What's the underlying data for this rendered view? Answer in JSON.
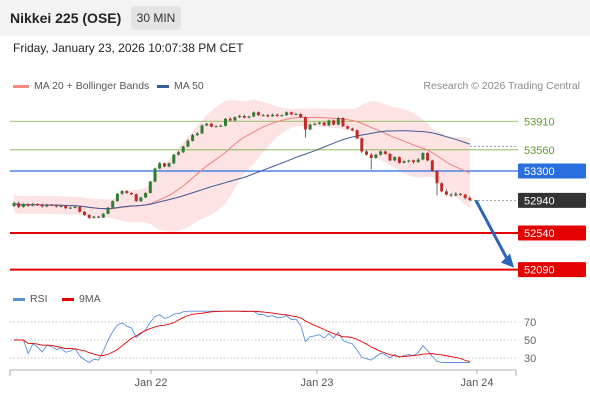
{
  "header": {
    "title": "Nikkei 225 (OSE)",
    "interval": "30 MIN",
    "datetime": "Friday, January 23, 2026 10:07:38 PM CET"
  },
  "legend": {
    "bollinger": "MA 20 + Bollinger Bands",
    "bollinger_color": "#f28b82",
    "ma50": "MA 50",
    "ma50_color": "#3b5998",
    "credit": "Research © 2026 Trading Central"
  },
  "levels": [
    {
      "value": "53910",
      "color": "#7cb342",
      "kind": "resistance"
    },
    {
      "value": "53560",
      "color": "#7cb342",
      "kind": "resistance"
    },
    {
      "value": "53300",
      "color": "#2a6fe0",
      "kind": "pivot"
    },
    {
      "value": "52940",
      "color": "#333333",
      "kind": "last"
    },
    {
      "value": "52540",
      "color": "#e50000",
      "kind": "support"
    },
    {
      "value": "52090",
      "color": "#e50000",
      "kind": "support"
    }
  ],
  "rsi_legend": {
    "rsi": "RSI",
    "rsi_color": "#5b8fd6",
    "ma": "9MA",
    "ma_color": "#e50000"
  },
  "rsi_axis": [
    "70",
    "50",
    "30"
  ],
  "x_axis": [
    "Jan 22",
    "Jan 23",
    "Jan 24"
  ],
  "chart_data": {
    "type": "candlestick",
    "y_levels": [
      53910,
      53560,
      53300,
      52940,
      52540,
      52090
    ],
    "last_price": 52940,
    "forecast_target": 52090,
    "rsi_range": [
      30,
      70
    ],
    "candles": [
      [
        52870,
        52905,
        52925,
        52860
      ],
      [
        52905,
        52860,
        52925,
        52845
      ],
      [
        52860,
        52895,
        52905,
        52850
      ],
      [
        52895,
        52875,
        52905,
        52860
      ],
      [
        52875,
        52895,
        52910,
        52865
      ],
      [
        52895,
        52885,
        52905,
        52870
      ],
      [
        52885,
        52865,
        52900,
        52850
      ],
      [
        52865,
        52885,
        52900,
        52855
      ],
      [
        52885,
        52880,
        52895,
        52870
      ],
      [
        52880,
        52865,
        52890,
        52850
      ],
      [
        52865,
        52870,
        52880,
        52855
      ],
      [
        52870,
        52845,
        52875,
        52830
      ],
      [
        52845,
        52850,
        52860,
        52835
      ],
      [
        52850,
        52860,
        52870,
        52840
      ],
      [
        52860,
        52800,
        52865,
        52790
      ],
      [
        52800,
        52760,
        52810,
        52750
      ],
      [
        52760,
        52725,
        52770,
        52710
      ],
      [
        52725,
        52740,
        52750,
        52715
      ],
      [
        52740,
        52730,
        52750,
        52720
      ],
      [
        52730,
        52775,
        52785,
        52725
      ],
      [
        52775,
        52850,
        52860,
        52770
      ],
      [
        52850,
        52930,
        52940,
        52845
      ],
      [
        52930,
        53020,
        53030,
        52925
      ],
      [
        53020,
        53055,
        53065,
        53010
      ],
      [
        53055,
        53030,
        53065,
        53020
      ],
      [
        53030,
        53015,
        53040,
        53005
      ],
      [
        53015,
        52930,
        53025,
        52920
      ],
      [
        52930,
        52975,
        52985,
        52920
      ],
      [
        52975,
        53030,
        53040,
        52970
      ],
      [
        53030,
        53170,
        53180,
        53025
      ],
      [
        53170,
        53330,
        53340,
        53160
      ],
      [
        53330,
        53395,
        53410,
        53320
      ],
      [
        53395,
        53355,
        53405,
        53345
      ],
      [
        53355,
        53395,
        53405,
        53345
      ],
      [
        53395,
        53500,
        53510,
        53385
      ],
      [
        53500,
        53530,
        53545,
        53490
      ],
      [
        53530,
        53600,
        53610,
        53520
      ],
      [
        53600,
        53670,
        53690,
        53590
      ],
      [
        53670,
        53740,
        53755,
        53660
      ],
      [
        53740,
        53760,
        53780,
        53730
      ],
      [
        53760,
        53860,
        53870,
        53755
      ],
      [
        53860,
        53880,
        53890,
        53850
      ],
      [
        53880,
        53845,
        53890,
        53835
      ],
      [
        53845,
        53850,
        53860,
        53835
      ],
      [
        53850,
        53855,
        53870,
        53840
      ],
      [
        53855,
        53940,
        53950,
        53845
      ],
      [
        53940,
        53920,
        53960,
        53910
      ],
      [
        53920,
        53960,
        53970,
        53910
      ],
      [
        53960,
        53975,
        53990,
        53950
      ],
      [
        53975,
        53955,
        53990,
        53945
      ],
      [
        53955,
        53970,
        53980,
        53945
      ],
      [
        53970,
        54020,
        54030,
        53960
      ],
      [
        54020,
        53985,
        54030,
        53975
      ],
      [
        53985,
        53985,
        54000,
        53970
      ],
      [
        53985,
        53970,
        54000,
        53960
      ],
      [
        53970,
        53990,
        54005,
        53965
      ],
      [
        53990,
        53975,
        54005,
        53965
      ],
      [
        53975,
        53985,
        53995,
        53965
      ],
      [
        53985,
        54020,
        54030,
        53975
      ],
      [
        54020,
        53995,
        54030,
        53985
      ],
      [
        53995,
        54000,
        54015,
        53985
      ],
      [
        54000,
        53960,
        54010,
        53950
      ],
      [
        53960,
        53810,
        53970,
        53710
      ],
      [
        53810,
        53870,
        53880,
        53800
      ],
      [
        53870,
        53880,
        53895,
        53860
      ],
      [
        53880,
        53895,
        53905,
        53870
      ],
      [
        53895,
        53860,
        53905,
        53850
      ],
      [
        53860,
        53920,
        53930,
        53850
      ],
      [
        53920,
        53870,
        53930,
        53860
      ],
      [
        53870,
        53950,
        53960,
        53860
      ],
      [
        53950,
        53850,
        53960,
        53840
      ],
      [
        53850,
        53820,
        53860,
        53810
      ],
      [
        53820,
        53800,
        53830,
        53790
      ],
      [
        53800,
        53700,
        53810,
        53690
      ],
      [
        53700,
        53540,
        53710,
        53520
      ],
      [
        53540,
        53500,
        53560,
        53490
      ],
      [
        53500,
        53460,
        53520,
        53320
      ],
      [
        53460,
        53500,
        53510,
        53450
      ],
      [
        53500,
        53540,
        53550,
        53490
      ],
      [
        53540,
        53510,
        53550,
        53500
      ],
      [
        53510,
        53430,
        53520,
        53420
      ],
      [
        53430,
        53470,
        53480,
        53420
      ],
      [
        53470,
        53400,
        53480,
        53390
      ],
      [
        53400,
        53420,
        53430,
        53390
      ],
      [
        53420,
        53430,
        53440,
        53400
      ],
      [
        53430,
        53410,
        53440,
        53390
      ],
      [
        53410,
        53440,
        53460,
        53400
      ],
      [
        53440,
        53520,
        53530,
        53430
      ],
      [
        53520,
        53430,
        53530,
        53420
      ],
      [
        53430,
        53300,
        53440,
        53290
      ],
      [
        53300,
        53150,
        53310,
        53000
      ],
      [
        53150,
        53050,
        53160,
        53040
      ],
      [
        53050,
        53010,
        53080,
        53000
      ],
      [
        53010,
        53000,
        53030,
        52980
      ],
      [
        53000,
        53020,
        53040,
        52990
      ],
      [
        53020,
        53010,
        53030,
        52995
      ],
      [
        53010,
        52970,
        53020,
        52950
      ],
      [
        52970,
        52945,
        52990,
        52930
      ]
    ]
  }
}
